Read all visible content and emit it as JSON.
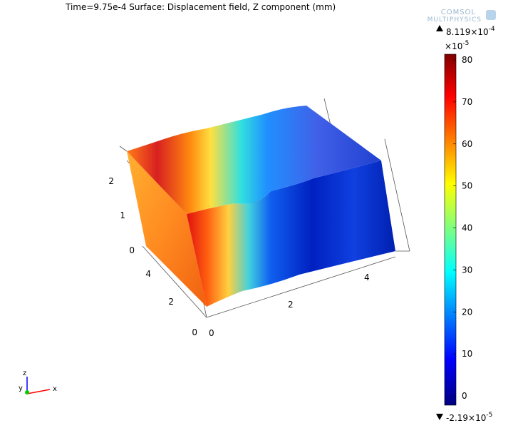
{
  "header": {
    "title": "Time=9.75e-4   Surface: Displacement field, Z component (mm)"
  },
  "logo": {
    "line1": "COMSOL",
    "line2": "MULTIPHYSICS"
  },
  "colorbar": {
    "max_label": {
      "text": "8.119×10",
      "exponent": "-4"
    },
    "scale_label": {
      "text": "×10",
      "exponent": "-5"
    },
    "min_label": {
      "text": "-2.19×10",
      "exponent": "-5"
    },
    "ticks": [
      0,
      10,
      20,
      30,
      40,
      50,
      60,
      70,
      80
    ]
  },
  "axes": {
    "z_ticks": [
      2,
      1,
      0
    ],
    "y_ticks": [
      4,
      2,
      0
    ],
    "x_ticks": [
      0,
      2,
      4
    ]
  },
  "triad": {
    "z": "z",
    "y": "y",
    "x": "x"
  }
}
